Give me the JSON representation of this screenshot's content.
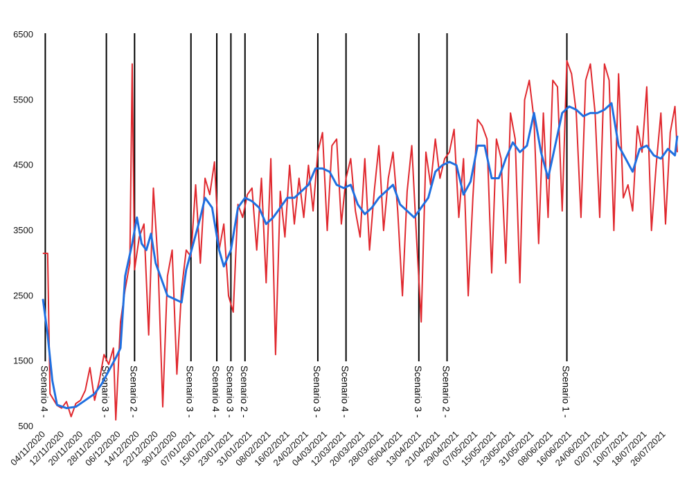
{
  "chart_data": {
    "type": "line",
    "title": "",
    "xlabel": "",
    "ylabel": "",
    "ylim": [
      500,
      6500
    ],
    "yticks": [
      "500",
      "1500",
      "2500",
      "3500",
      "4500",
      "5500",
      "6500"
    ],
    "x_start": "04/11/2020",
    "x_end": "01/08/2021",
    "xticks": [
      "04/11/2020",
      "12/11/2020",
      "20/11/2020",
      "28/11/2020",
      "06/12/2020",
      "14/12/2020",
      "22/12/2020",
      "30/12/2020",
      "07/01/2021",
      "15/01/2021",
      "23/01/2021",
      "31/01/2021",
      "08/02/2021",
      "16/02/2021",
      "24/02/2021",
      "04/03/2021",
      "12/03/2021",
      "20/03/2021",
      "28/03/2021",
      "05/04/2021",
      "13/04/2021",
      "21/04/2021",
      "29/04/2021",
      "07/05/2021",
      "15/05/2021",
      "23/05/2021",
      "31/05/2021",
      "08/06/2021",
      "16/06/2021",
      "24/06/2021",
      "02/07/2021",
      "10/07/2021",
      "18/07/2021",
      "26/07/2021"
    ],
    "grid": false,
    "legend": "none",
    "series": [
      {
        "color": "#e0282e",
        "style": "daily",
        "points": [
          [
            "04/11/2020",
            3150
          ],
          [
            "06/11/2020",
            3150
          ],
          [
            "07/11/2020",
            1000
          ],
          [
            "10/11/2020",
            820
          ],
          [
            "12/11/2020",
            780
          ],
          [
            "14/11/2020",
            880
          ],
          [
            "16/11/2020",
            650
          ],
          [
            "18/11/2020",
            850
          ],
          [
            "20/11/2020",
            900
          ],
          [
            "22/11/2020",
            1050
          ],
          [
            "24/11/2020",
            1400
          ],
          [
            "26/11/2020",
            900
          ],
          [
            "28/11/2020",
            1200
          ],
          [
            "30/11/2020",
            1600
          ],
          [
            "02/12/2020",
            1450
          ],
          [
            "04/12/2020",
            1700
          ],
          [
            "05/12/2020",
            600
          ],
          [
            "07/12/2020",
            2100
          ],
          [
            "09/12/2020",
            2600
          ],
          [
            "11/12/2020",
            3000
          ],
          [
            "12/12/2020",
            6050
          ],
          [
            "13/12/2020",
            2900
          ],
          [
            "15/12/2020",
            3400
          ],
          [
            "17/12/2020",
            3600
          ],
          [
            "19/12/2020",
            1900
          ],
          [
            "21/12/2020",
            4150
          ],
          [
            "23/12/2020",
            3000
          ],
          [
            "25/12/2020",
            800
          ],
          [
            "27/12/2020",
            2800
          ],
          [
            "29/12/2020",
            3200
          ],
          [
            "31/12/2020",
            1300
          ],
          [
            "02/01/2021",
            2600
          ],
          [
            "04/01/2021",
            3200
          ],
          [
            "06/01/2021",
            3100
          ],
          [
            "08/01/2021",
            4200
          ],
          [
            "10/01/2021",
            3000
          ],
          [
            "12/01/2021",
            4300
          ],
          [
            "14/01/2021",
            4050
          ],
          [
            "16/01/2021",
            4550
          ],
          [
            "18/01/2021",
            3200
          ],
          [
            "20/01/2021",
            3600
          ],
          [
            "22/01/2021",
            2500
          ],
          [
            "24/01/2021",
            2250
          ],
          [
            "26/01/2021",
            3900
          ],
          [
            "28/01/2021",
            3700
          ],
          [
            "30/01/2021",
            4050
          ],
          [
            "01/02/2021",
            4150
          ],
          [
            "03/02/2021",
            3200
          ],
          [
            "05/02/2021",
            4300
          ],
          [
            "07/02/2021",
            2700
          ],
          [
            "09/02/2021",
            4600
          ],
          [
            "11/02/2021",
            1600
          ],
          [
            "13/02/2021",
            4100
          ],
          [
            "15/02/2021",
            3400
          ],
          [
            "17/02/2021",
            4500
          ],
          [
            "19/02/2021",
            3600
          ],
          [
            "21/02/2021",
            4300
          ],
          [
            "23/02/2021",
            3700
          ],
          [
            "25/02/2021",
            4500
          ],
          [
            "27/02/2021",
            3800
          ],
          [
            "01/03/2021",
            4700
          ],
          [
            "03/03/2021",
            5000
          ],
          [
            "05/03/2021",
            3500
          ],
          [
            "07/03/2021",
            4800
          ],
          [
            "09/03/2021",
            4900
          ],
          [
            "11/03/2021",
            3600
          ],
          [
            "13/03/2021",
            4300
          ],
          [
            "15/03/2021",
            4600
          ],
          [
            "17/03/2021",
            3800
          ],
          [
            "19/03/2021",
            3400
          ],
          [
            "21/03/2021",
            4600
          ],
          [
            "23/03/2021",
            3200
          ],
          [
            "25/03/2021",
            4100
          ],
          [
            "27/03/2021",
            4800
          ],
          [
            "29/03/2021",
            3500
          ],
          [
            "31/03/2021",
            4300
          ],
          [
            "02/04/2021",
            4700
          ],
          [
            "04/04/2021",
            3800
          ],
          [
            "06/04/2021",
            2500
          ],
          [
            "08/04/2021",
            4100
          ],
          [
            "10/04/2021",
            4800
          ],
          [
            "12/04/2021",
            3400
          ],
          [
            "14/04/2021",
            2100
          ],
          [
            "16/04/2021",
            4700
          ],
          [
            "18/04/2021",
            4200
          ],
          [
            "20/04/2021",
            4900
          ],
          [
            "22/04/2021",
            4300
          ],
          [
            "24/04/2021",
            4600
          ],
          [
            "26/04/2021",
            4700
          ],
          [
            "28/04/2021",
            5050
          ],
          [
            "30/04/2021",
            3700
          ],
          [
            "02/05/2021",
            4600
          ],
          [
            "04/05/2021",
            2500
          ],
          [
            "06/05/2021",
            4000
          ],
          [
            "08/05/2021",
            5200
          ],
          [
            "10/05/2021",
            5100
          ],
          [
            "12/05/2021",
            4900
          ],
          [
            "14/05/2021",
            2850
          ],
          [
            "16/05/2021",
            4900
          ],
          [
            "18/05/2021",
            4600
          ],
          [
            "20/05/2021",
            3000
          ],
          [
            "22/05/2021",
            5300
          ],
          [
            "24/05/2021",
            4900
          ],
          [
            "26/05/2021",
            2700
          ],
          [
            "28/05/2021",
            5500
          ],
          [
            "30/05/2021",
            5800
          ],
          [
            "01/06/2021",
            5200
          ],
          [
            "03/06/2021",
            3300
          ],
          [
            "05/06/2021",
            5300
          ],
          [
            "07/06/2021",
            3700
          ],
          [
            "09/06/2021",
            5800
          ],
          [
            "11/06/2021",
            5700
          ],
          [
            "13/06/2021",
            3800
          ],
          [
            "15/06/2021",
            6100
          ],
          [
            "17/06/2021",
            5900
          ],
          [
            "19/06/2021",
            5300
          ],
          [
            "21/06/2021",
            3700
          ],
          [
            "23/06/2021",
            5800
          ],
          [
            "25/06/2021",
            6050
          ],
          [
            "27/06/2021",
            5300
          ],
          [
            "29/06/2021",
            3700
          ],
          [
            "01/07/2021",
            6050
          ],
          [
            "03/07/2021",
            5800
          ],
          [
            "05/07/2021",
            3500
          ],
          [
            "07/07/2021",
            5900
          ],
          [
            "09/07/2021",
            4000
          ],
          [
            "11/07/2021",
            4200
          ],
          [
            "13/07/2021",
            3800
          ],
          [
            "15/07/2021",
            5100
          ],
          [
            "17/07/2021",
            4700
          ],
          [
            "19/07/2021",
            5700
          ],
          [
            "21/07/2021",
            3500
          ],
          [
            "23/07/2021",
            4500
          ],
          [
            "25/07/2021",
            5300
          ],
          [
            "27/07/2021",
            3600
          ],
          [
            "29/07/2021",
            5000
          ],
          [
            "31/07/2021",
            5400
          ],
          [
            "01/08/2021",
            4700
          ]
        ]
      },
      {
        "color": "#1f6fe0",
        "style": "smoothed",
        "points": [
          [
            "04/11/2020",
            2450
          ],
          [
            "06/11/2020",
            1900
          ],
          [
            "08/11/2020",
            1200
          ],
          [
            "10/11/2020",
            830
          ],
          [
            "14/11/2020",
            780
          ],
          [
            "18/11/2020",
            800
          ],
          [
            "22/11/2020",
            900
          ],
          [
            "26/11/2020",
            1000
          ],
          [
            "29/11/2020",
            1150
          ],
          [
            "02/12/2020",
            1350
          ],
          [
            "05/12/2020",
            1550
          ],
          [
            "07/12/2020",
            1700
          ],
          [
            "09/12/2020",
            2800
          ],
          [
            "12/12/2020",
            3300
          ],
          [
            "14/12/2020",
            3700
          ],
          [
            "16/12/2020",
            3300
          ],
          [
            "18/12/2020",
            3200
          ],
          [
            "20/12/2020",
            3450
          ],
          [
            "22/12/2020",
            3000
          ],
          [
            "24/12/2020",
            2800
          ],
          [
            "27/12/2020",
            2500
          ],
          [
            "30/12/2020",
            2450
          ],
          [
            "02/01/2021",
            2400
          ],
          [
            "04/01/2021",
            2900
          ],
          [
            "07/01/2021",
            3300
          ],
          [
            "10/01/2021",
            3700
          ],
          [
            "12/01/2021",
            4000
          ],
          [
            "15/01/2021",
            3850
          ],
          [
            "18/01/2021",
            3200
          ],
          [
            "20/01/2021",
            2950
          ],
          [
            "23/01/2021",
            3200
          ],
          [
            "26/01/2021",
            3850
          ],
          [
            "29/01/2021",
            4000
          ],
          [
            "01/02/2021",
            3950
          ],
          [
            "04/02/2021",
            3850
          ],
          [
            "07/02/2021",
            3600
          ],
          [
            "10/02/2021",
            3700
          ],
          [
            "13/02/2021",
            3850
          ],
          [
            "16/02/2021",
            4000
          ],
          [
            "19/02/2021",
            4000
          ],
          [
            "22/02/2021",
            4100
          ],
          [
            "25/02/2021",
            4200
          ],
          [
            "28/02/2021",
            4450
          ],
          [
            "03/03/2021",
            4450
          ],
          [
            "06/03/2021",
            4400
          ],
          [
            "09/03/2021",
            4200
          ],
          [
            "12/03/2021",
            4150
          ],
          [
            "15/03/2021",
            4200
          ],
          [
            "18/03/2021",
            3900
          ],
          [
            "21/03/2021",
            3750
          ],
          [
            "24/03/2021",
            3850
          ],
          [
            "27/03/2021",
            4000
          ],
          [
            "30/03/2021",
            4100
          ],
          [
            "02/04/2021",
            4200
          ],
          [
            "05/04/2021",
            3900
          ],
          [
            "08/04/2021",
            3800
          ],
          [
            "11/04/2021",
            3700
          ],
          [
            "14/04/2021",
            3850
          ],
          [
            "17/04/2021",
            4000
          ],
          [
            "20/04/2021",
            4400
          ],
          [
            "23/04/2021",
            4500
          ],
          [
            "26/04/2021",
            4550
          ],
          [
            "29/04/2021",
            4500
          ],
          [
            "02/05/2021",
            4050
          ],
          [
            "05/05/2021",
            4250
          ],
          [
            "08/05/2021",
            4800
          ],
          [
            "11/05/2021",
            4800
          ],
          [
            "14/05/2021",
            4300
          ],
          [
            "17/05/2021",
            4300
          ],
          [
            "20/05/2021",
            4600
          ],
          [
            "23/05/2021",
            4850
          ],
          [
            "26/05/2021",
            4700
          ],
          [
            "29/05/2021",
            4800
          ],
          [
            "01/06/2021",
            5300
          ],
          [
            "04/06/2021",
            4700
          ],
          [
            "07/06/2021",
            4300
          ],
          [
            "10/06/2021",
            4800
          ],
          [
            "13/06/2021",
            5300
          ],
          [
            "16/06/2021",
            5400
          ],
          [
            "19/06/2021",
            5350
          ],
          [
            "22/06/2021",
            5250
          ],
          [
            "25/06/2021",
            5300
          ],
          [
            "28/06/2021",
            5300
          ],
          [
            "01/07/2021",
            5350
          ],
          [
            "04/07/2021",
            5450
          ],
          [
            "07/07/2021",
            4800
          ],
          [
            "10/07/2021",
            4600
          ],
          [
            "13/07/2021",
            4400
          ],
          [
            "16/07/2021",
            4750
          ],
          [
            "19/07/2021",
            4800
          ],
          [
            "22/07/2021",
            4650
          ],
          [
            "25/07/2021",
            4600
          ],
          [
            "28/07/2021",
            4750
          ],
          [
            "31/07/2021",
            4650
          ],
          [
            "01/08/2021",
            4950
          ]
        ]
      }
    ],
    "scenarios": [
      {
        "date": "05/11/2020",
        "label": "Scenario 4"
      },
      {
        "date": "01/12/2020",
        "label": "Scenario 3"
      },
      {
        "date": "13/12/2020",
        "label": "Scenario 2"
      },
      {
        "date": "06/01/2021",
        "label": "Scenario 3"
      },
      {
        "date": "17/01/2021",
        "label": "Scenario 4"
      },
      {
        "date": "23/01/2021",
        "label": "Scenario 3"
      },
      {
        "date": "29/01/2021",
        "label": "Scenario 2"
      },
      {
        "date": "01/03/2021",
        "label": "Scenario 3"
      },
      {
        "date": "13/03/2021",
        "label": "Scenario 4"
      },
      {
        "date": "13/04/2021",
        "label": "Scenario 3"
      },
      {
        "date": "25/04/2021",
        "label": "Scenario 2"
      },
      {
        "date": "15/06/2021",
        "label": "Scenario 1"
      }
    ]
  }
}
